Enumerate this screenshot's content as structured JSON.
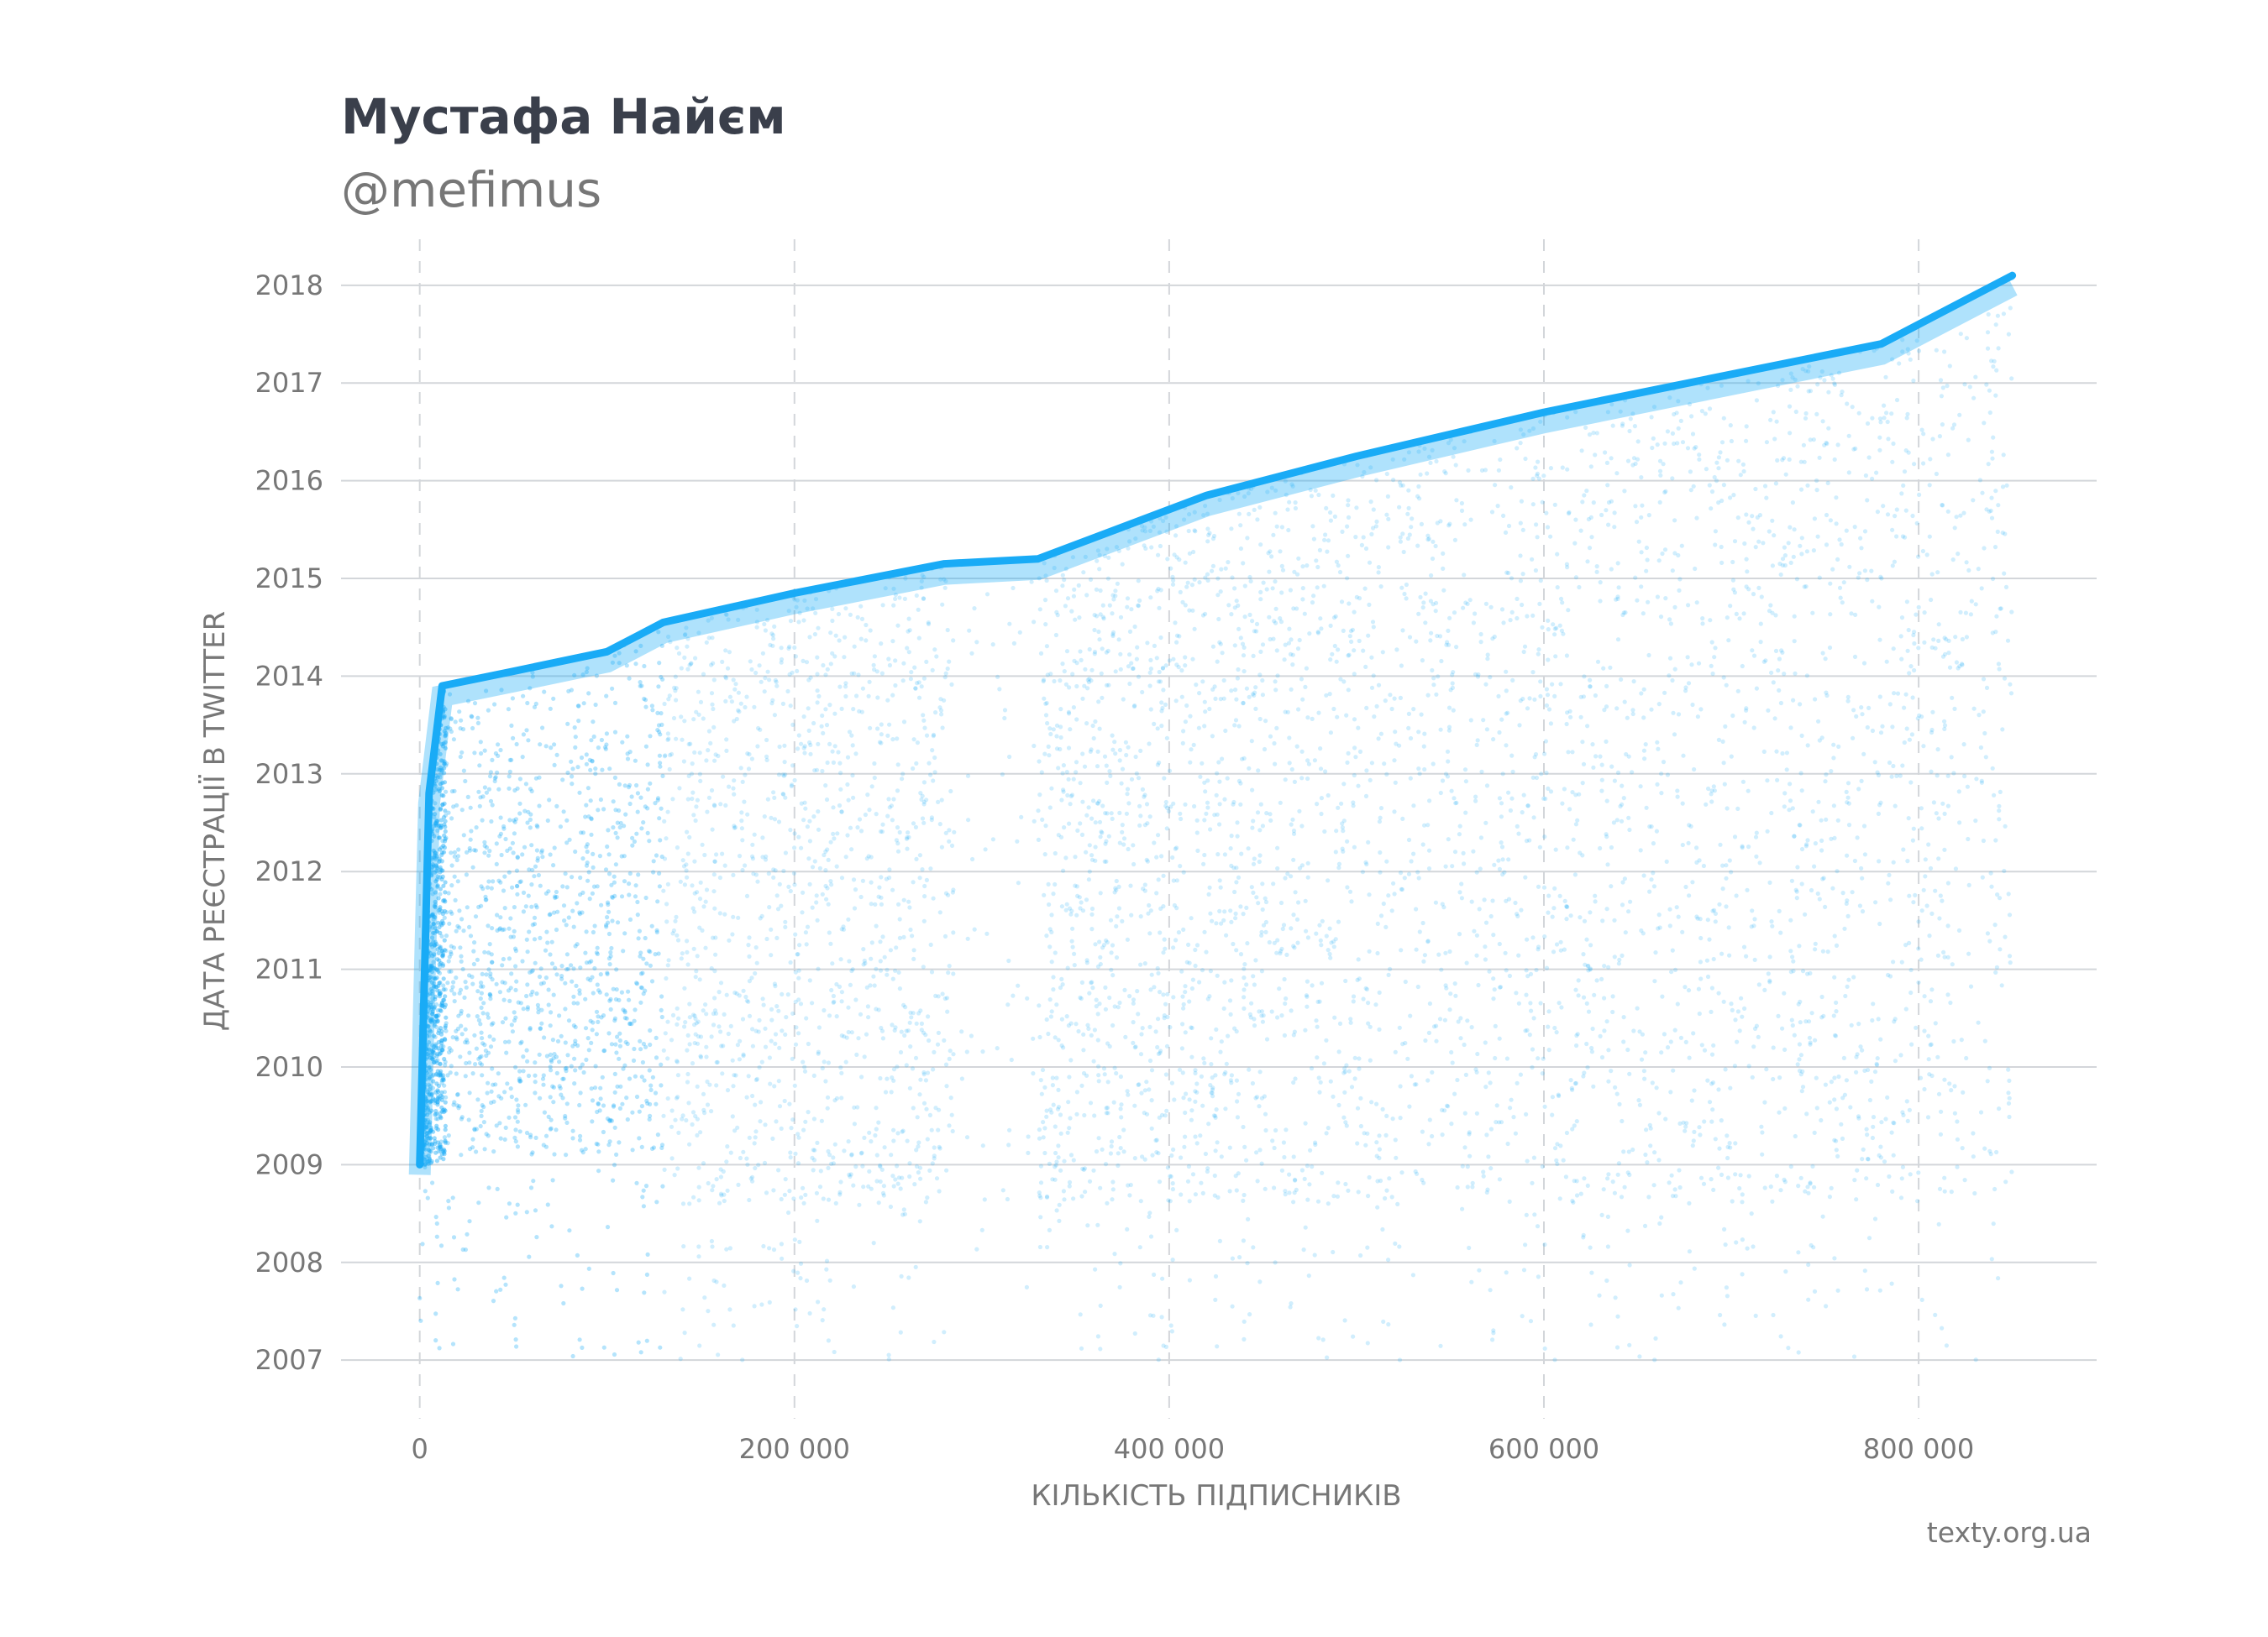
{
  "header": {
    "title": "Мустафа Найєм",
    "subtitle": "@mefimus"
  },
  "footer": {
    "credit": "texty.org.ua"
  },
  "colors": {
    "points": "#1aabf6",
    "grid": "#d3d6da",
    "text": "#777777",
    "title": "#3a3f4b"
  },
  "chart_data": {
    "type": "scatter",
    "xlabel": "КІЛЬКІСТЬ ПІДПИСНИКІВ",
    "ylabel": "ДАТА РЕЄСТРАЦІЇ В TWITTER",
    "x_ticks": [
      "0",
      "200 000",
      "400 000",
      "600 000",
      "800 000"
    ],
    "y_ticks": [
      "2007",
      "2008",
      "2009",
      "2010",
      "2011",
      "2012",
      "2013",
      "2014",
      "2015",
      "2016",
      "2017",
      "2018"
    ],
    "xlim": [
      -42000,
      895000
    ],
    "ylim": [
      2006.4,
      2018.6
    ],
    "grid": true,
    "x_grid_style": "dashed",
    "y_grid_style": "solid",
    "total_followers_approx": 850000,
    "series": [
      {
        "description": "upper envelope (accounts registered most recently before following)",
        "points": [
          [
            0,
            2009.0
          ],
          [
            5000,
            2012.8
          ],
          [
            12000,
            2013.9
          ],
          [
            50000,
            2014.05
          ],
          [
            100000,
            2014.25
          ],
          [
            130000,
            2014.55
          ],
          [
            200000,
            2014.85
          ],
          [
            280000,
            2015.15
          ],
          [
            330000,
            2015.2
          ],
          [
            420000,
            2015.85
          ],
          [
            500000,
            2016.25
          ],
          [
            600000,
            2016.7
          ],
          [
            780000,
            2017.4
          ],
          [
            850000,
            2018.1
          ]
        ]
      }
    ]
  }
}
